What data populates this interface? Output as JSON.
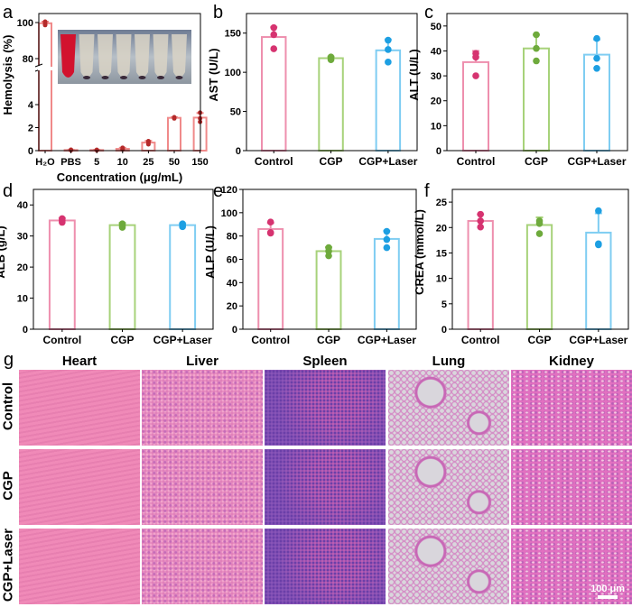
{
  "panel_letters": [
    "a",
    "b",
    "c",
    "d",
    "e",
    "f",
    "g"
  ],
  "colors": {
    "control_bar": "#ee8fae",
    "control_point": "#d63370",
    "cgp_bar": "#a7d27a",
    "cgp_point": "#6eaa3c",
    "laser_bar": "#7fcdf2",
    "laser_point": "#1d9fe2",
    "hemolysis_bar": "#f08a8a",
    "hemolysis_point": "#b52a2a"
  },
  "chart_data": [
    {
      "panel": "a",
      "type": "bar",
      "ylabel": "Hemolysis (%)",
      "xlabel": "Concentration (μg/mL)",
      "categories": [
        "H₂O",
        "PBS",
        "5",
        "10",
        "25",
        "50",
        "150"
      ],
      "values": [
        99.6,
        0.05,
        0.05,
        0.15,
        0.7,
        2.85,
        2.87
      ],
      "sd": [
        0.9,
        0.03,
        0.03,
        0.1,
        0.15,
        0.06,
        0.4
      ],
      "points": [
        [
          100.5,
          99.3,
          98.6
        ],
        [
          0.08,
          0.05,
          0.03
        ],
        [
          0.07,
          0.05,
          0.03
        ],
        [
          0.25,
          0.12,
          0.1
        ],
        [
          0.82,
          0.7,
          0.55
        ],
        [
          2.9,
          2.85,
          2.8
        ],
        [
          3.3,
          2.8,
          2.5
        ]
      ],
      "axis_break": [
        5.5,
        78
      ],
      "yticks": [
        0,
        2,
        4,
        80,
        100
      ],
      "inset": "photo of hemolysis tubes"
    },
    {
      "panel": "b",
      "type": "bar",
      "ylabel": "AST (U/L)",
      "categories": [
        "Control",
        "CGP",
        "CGP+Laser"
      ],
      "ylim": [
        0,
        175
      ],
      "yticks": [
        0,
        50,
        100,
        150
      ],
      "values": [
        145,
        118,
        128
      ],
      "sd": [
        13,
        2,
        14
      ],
      "points": [
        [
          157,
          148,
          130
        ],
        [
          119.5,
          117.5,
          116
        ],
        [
          141,
          129,
          113
        ]
      ]
    },
    {
      "panel": "c",
      "type": "bar",
      "ylabel": "ALT (U/L)",
      "categories": [
        "Control",
        "CGP",
        "CGP+Laser"
      ],
      "ylim": [
        0,
        55
      ],
      "yticks": [
        0,
        10,
        20,
        30,
        40,
        50
      ],
      "values": [
        35.5,
        41,
        38.5
      ],
      "sd": [
        4.5,
        5.5,
        6
      ],
      "points": [
        [
          39,
          37.5,
          30
        ],
        [
          46.5,
          41,
          36
        ],
        [
          45,
          37,
          33
        ]
      ]
    },
    {
      "panel": "d",
      "type": "bar",
      "ylabel": "ALB (g/L)",
      "categories": [
        "Control",
        "CGP",
        "CGP+Laser"
      ],
      "ylim": [
        0,
        45
      ],
      "yticks": [
        0,
        10,
        20,
        30,
        40
      ],
      "values": [
        35,
        33.5,
        33.5
      ],
      "sd": [
        0.8,
        0.7,
        0.6
      ],
      "points": [
        [
          35.6,
          35,
          34.4
        ],
        [
          33.9,
          33.3,
          32.8
        ],
        [
          33.9,
          33.4,
          33
        ]
      ]
    },
    {
      "panel": "e",
      "type": "bar",
      "ylabel": "ALP (U/L)",
      "categories": [
        "Control",
        "CGP",
        "CGP+Laser"
      ],
      "ylim": [
        0,
        120
      ],
      "yticks": [
        0,
        20,
        40,
        60,
        80,
        100,
        120
      ],
      "values": [
        86,
        67,
        77.5
      ],
      "sd": [
        5,
        3.5,
        7
      ],
      "points": [
        [
          92,
          83,
          82.5
        ],
        [
          70,
          67,
          63
        ],
        [
          84,
          77,
          70
        ]
      ]
    },
    {
      "panel": "f",
      "type": "bar",
      "ylabel": "CREA (mmol/L)",
      "categories": [
        "Control",
        "CGP",
        "CGP+Laser"
      ],
      "ylim": [
        0,
        27.5
      ],
      "yticks": [
        0,
        5,
        10,
        15,
        20,
        25
      ],
      "values": [
        21.3,
        20.5,
        19
      ],
      "sd": [
        1.3,
        1.5,
        3.8
      ],
      "points": [
        [
          22.6,
          21.3,
          20.1
        ],
        [
          21.3,
          20.8,
          18.8
        ],
        [
          23.3,
          16.8,
          16.6
        ]
      ]
    }
  ],
  "histology": {
    "columns": [
      "Heart",
      "Liver",
      "Spleen",
      "Lung",
      "Kidney"
    ],
    "rows": [
      "Control",
      "CGP",
      "CGP+Laser"
    ],
    "scale_bar": "100 μm"
  }
}
